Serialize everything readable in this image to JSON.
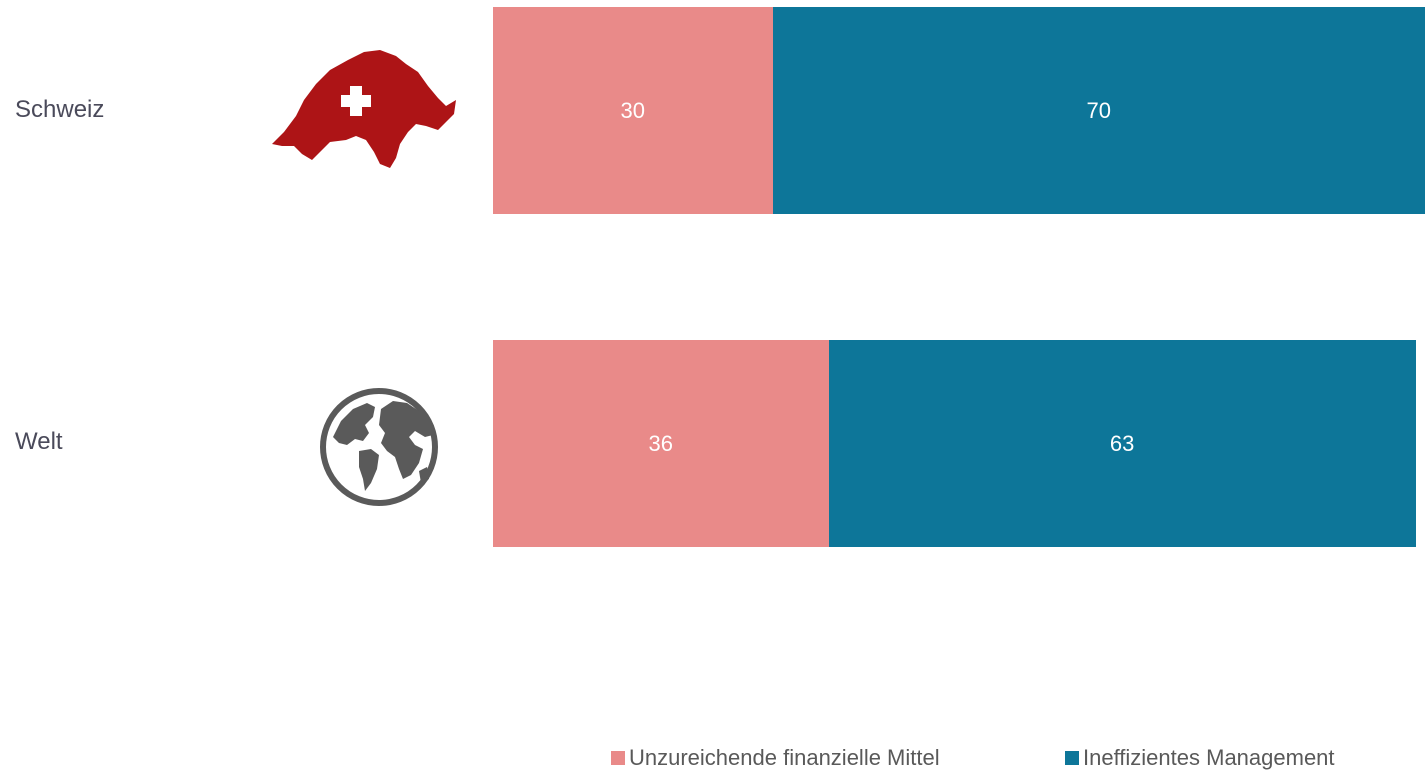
{
  "chart_data": {
    "type": "bar",
    "orientation": "horizontal",
    "stacked": true,
    "categories": [
      "Schweiz",
      "Welt"
    ],
    "series": [
      {
        "name": "Unzureichende finanzielle Mittel",
        "values": [
          30,
          36
        ],
        "color": "#e98a89"
      },
      {
        "name": "Ineffizientes Management",
        "values": [
          70,
          63
        ],
        "color": "#0d7699"
      }
    ],
    "data_labels": true,
    "xlim": [
      0,
      100
    ],
    "grid": false,
    "legend_position": "bottom",
    "icons": [
      "switzerland-map-icon",
      "globe-icon"
    ]
  }
}
